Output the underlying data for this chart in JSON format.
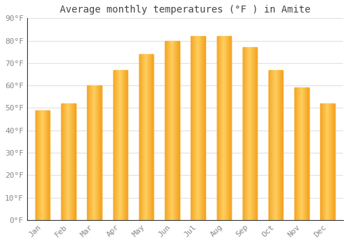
{
  "title": "Average monthly temperatures (°F ) in Amite",
  "months": [
    "Jan",
    "Feb",
    "Mar",
    "Apr",
    "May",
    "Jun",
    "Jul",
    "Aug",
    "Sep",
    "Oct",
    "Nov",
    "Dec"
  ],
  "values": [
    49,
    52,
    60,
    67,
    74,
    80,
    82,
    82,
    77,
    67,
    59,
    52
  ],
  "bar_color_left": "#F5A623",
  "bar_color_center": "#FFD060",
  "bar_color_right": "#F5A623",
  "ylim": [
    0,
    90
  ],
  "yticks": [
    0,
    10,
    20,
    30,
    40,
    50,
    60,
    70,
    80,
    90
  ],
  "ytick_labels": [
    "0°F",
    "10°F",
    "20°F",
    "30°F",
    "40°F",
    "50°F",
    "60°F",
    "70°F",
    "80°F",
    "90°F"
  ],
  "background_color": "#ffffff",
  "plot_bg_color": "#ffffff",
  "grid_color": "#e0e0e0",
  "title_fontsize": 10,
  "tick_fontsize": 8,
  "bar_width": 0.55
}
